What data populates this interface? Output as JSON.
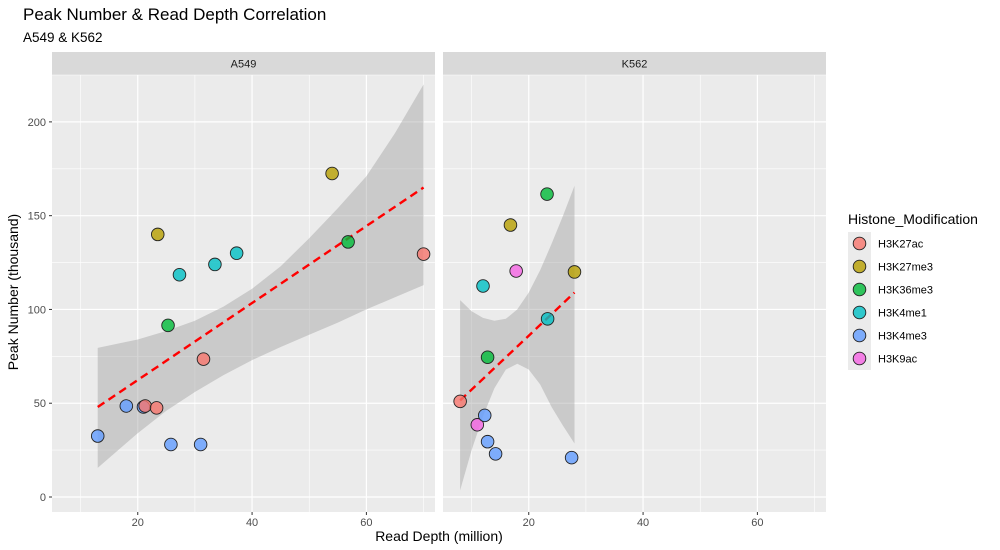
{
  "chart_data": {
    "type": "scatter",
    "title": "Peak Number & Read Depth Correlation",
    "subtitle": "A549 & K562",
    "xlabel": "Read Depth (million)",
    "ylabel": "Peak Number (thousand)",
    "xlim": [
      5,
      72
    ],
    "ylim": [
      -8,
      225
    ],
    "x_ticks": [
      20,
      40,
      60
    ],
    "y_ticks": [
      0,
      50,
      100,
      150,
      200
    ],
    "grid": true,
    "legend_title": "Histone_Modification",
    "legend_position": "right",
    "categories": [
      "H3K27ac",
      "H3K27me3",
      "H3K36me3",
      "H3K4me1",
      "H3K4me3",
      "H3K9ac"
    ],
    "colors": {
      "H3K27ac": "#F8766D",
      "H3K27me3": "#B79F00",
      "H3K36me3": "#00BA38",
      "H3K4me1": "#00BFC4",
      "H3K4me3": "#619CFF",
      "H3K9ac": "#F564E3"
    },
    "panels": [
      {
        "name": "A549",
        "points": [
          {
            "x": 13.0,
            "y": 32.5,
            "group": "H3K4me3"
          },
          {
            "x": 18.0,
            "y": 48.5,
            "group": "H3K4me3"
          },
          {
            "x": 21.0,
            "y": 48.0,
            "group": "H3K4me3"
          },
          {
            "x": 21.3,
            "y": 48.5,
            "group": "H3K27ac"
          },
          {
            "x": 23.3,
            "y": 47.5,
            "group": "H3K27ac"
          },
          {
            "x": 23.5,
            "y": 140.0,
            "group": "H3K27me3"
          },
          {
            "x": 25.3,
            "y": 91.5,
            "group": "H3K36me3"
          },
          {
            "x": 25.8,
            "y": 28.0,
            "group": "H3K4me3"
          },
          {
            "x": 27.3,
            "y": 118.5,
            "group": "H3K4me1"
          },
          {
            "x": 31.0,
            "y": 28.0,
            "group": "H3K4me3"
          },
          {
            "x": 31.5,
            "y": 73.5,
            "group": "H3K27ac"
          },
          {
            "x": 33.5,
            "y": 124.0,
            "group": "H3K4me1"
          },
          {
            "x": 37.3,
            "y": 130.0,
            "group": "H3K4me1"
          },
          {
            "x": 54.0,
            "y": 172.5,
            "group": "H3K27me3"
          },
          {
            "x": 56.8,
            "y": 136.0,
            "group": "H3K36me3"
          },
          {
            "x": 70.0,
            "y": 129.5,
            "group": "H3K27ac"
          }
        ],
        "fit": {
          "x": [
            13.0,
            70.0
          ],
          "y": [
            48.0,
            165.0
          ]
        },
        "ribbon": {
          "x": [
            13.0,
            20.0,
            25.0,
            30.0,
            35.0,
            40.0,
            45.0,
            50.0,
            55.0,
            60.0,
            65.0,
            70.0
          ],
          "lower": [
            15.5,
            34.0,
            46.0,
            56.0,
            65.0,
            73.0,
            80.0,
            86.5,
            93.0,
            100.0,
            106.5,
            113.0
          ],
          "upper": [
            79.5,
            84.0,
            88.5,
            94.0,
            101.5,
            111.0,
            123.0,
            138.0,
            154.0,
            171.0,
            194.0,
            220.0
          ]
        }
      },
      {
        "name": "K562",
        "points": [
          {
            "x": 8.0,
            "y": 51.0,
            "group": "H3K27ac"
          },
          {
            "x": 11.0,
            "y": 38.5,
            "group": "H3K9ac"
          },
          {
            "x": 12.0,
            "y": 112.5,
            "group": "H3K4me1"
          },
          {
            "x": 12.3,
            "y": 43.5,
            "group": "H3K4me3"
          },
          {
            "x": 12.8,
            "y": 74.5,
            "group": "H3K36me3"
          },
          {
            "x": 12.8,
            "y": 29.5,
            "group": "H3K4me3"
          },
          {
            "x": 14.2,
            "y": 23.0,
            "group": "H3K4me3"
          },
          {
            "x": 16.8,
            "y": 145.0,
            "group": "H3K27me3"
          },
          {
            "x": 17.8,
            "y": 120.5,
            "group": "H3K9ac"
          },
          {
            "x": 23.2,
            "y": 161.5,
            "group": "H3K36me3"
          },
          {
            "x": 23.3,
            "y": 95.0,
            "group": "H3K4me1"
          },
          {
            "x": 27.5,
            "y": 21.0,
            "group": "H3K4me3"
          },
          {
            "x": 28.0,
            "y": 120.0,
            "group": "H3K27me3"
          }
        ],
        "fit": {
          "x": [
            8.0,
            28.0
          ],
          "y": [
            51.5,
            109.0
          ]
        },
        "ribbon": {
          "x": [
            8.0,
            10.0,
            12.0,
            14.0,
            16.0,
            18.0,
            20.0,
            22.0,
            24.0,
            26.0,
            28.0
          ],
          "lower": [
            3.5,
            25.0,
            43.0,
            58.0,
            68.0,
            71.0,
            68.0,
            60.0,
            48.0,
            38.0,
            28.5
          ],
          "upper": [
            105.0,
            99.0,
            95.5,
            94.0,
            95.0,
            100.0,
            109.0,
            121.0,
            135.0,
            150.0,
            166.0
          ]
        }
      }
    ]
  }
}
